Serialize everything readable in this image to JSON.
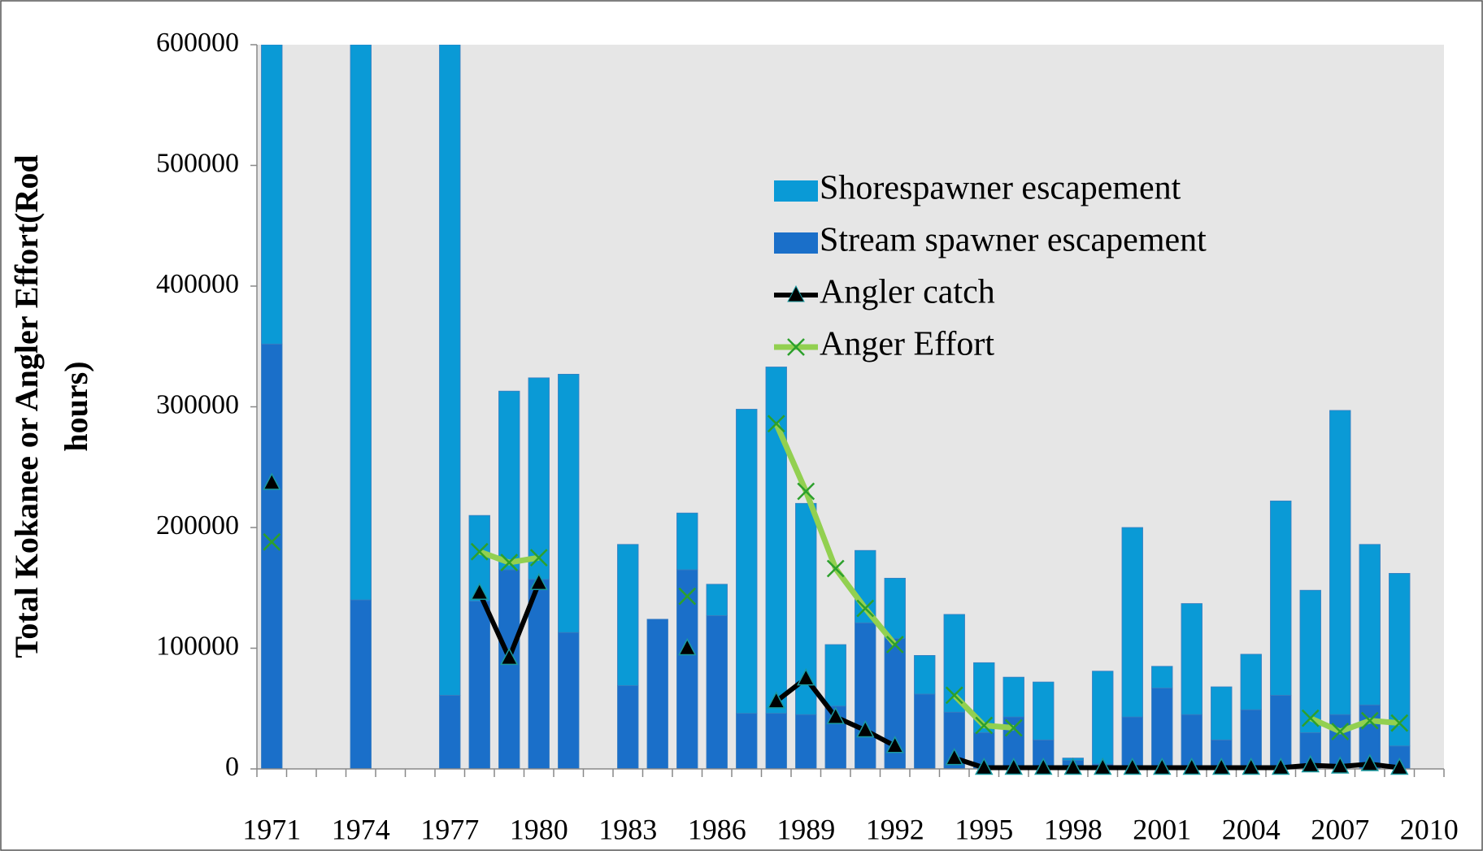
{
  "chart_data": {
    "type": "bar",
    "ylabel": [
      "Total Kokanee or Angler Effort(Rod",
      "hours)"
    ],
    "categories": [
      "1971",
      null,
      null,
      "1974",
      null,
      null,
      "1977",
      null,
      null,
      "1980",
      null,
      null,
      "1983",
      null,
      null,
      "1986",
      null,
      null,
      "1989",
      null,
      null,
      "1992",
      null,
      null,
      "1995",
      null,
      null,
      "1998",
      null,
      null,
      "2001",
      null,
      null,
      "2004",
      null,
      null,
      "2007",
      null,
      null,
      "2010"
    ],
    "series": [
      {
        "name": "Stream spawner escapement",
        "kind": "bar",
        "color": "#1a6fc9",
        "values": [
          352000,
          null,
          null,
          140000,
          null,
          null,
          61000,
          139000,
          165000,
          157000,
          113000,
          null,
          69000,
          124000,
          165000,
          127000,
          46000,
          46000,
          45000,
          52000,
          121000,
          108000,
          62000,
          47000,
          30000,
          43000,
          24000,
          7000,
          4000,
          43000,
          67000,
          45000,
          24000,
          49000,
          61000,
          30000,
          45000,
          53000,
          19000,
          null
        ]
      },
      {
        "name": "Shorespawner escapement",
        "kind": "bar",
        "color": "#0a9ad6",
        "values": [
          248000,
          null,
          null,
          460000,
          null,
          null,
          539000,
          71000,
          148000,
          167000,
          214000,
          null,
          117000,
          0,
          47000,
          26000,
          252000,
          287000,
          175000,
          51000,
          60000,
          50000,
          32000,
          81000,
          58000,
          33000,
          48000,
          2000,
          77000,
          157000,
          18000,
          92000,
          44000,
          46000,
          161000,
          118000,
          252000,
          133000,
          143000,
          null
        ]
      },
      {
        "name": "Angler catch",
        "kind": "line",
        "color": "#000000",
        "marker": "triangle",
        "values": [
          237000,
          null,
          null,
          null,
          null,
          null,
          null,
          146000,
          92000,
          154000,
          null,
          null,
          null,
          null,
          100000,
          null,
          null,
          56000,
          75000,
          43000,
          32000,
          19000,
          null,
          9000,
          1000,
          1000,
          1000,
          1000,
          1000,
          1000,
          1000,
          1000,
          1000,
          1000,
          1000,
          3000,
          2000,
          4000,
          1000,
          null
        ]
      },
      {
        "name": "Anger Effort",
        "kind": "line",
        "color": "#92d050",
        "marker": "x",
        "marker_color": "#2ca02c",
        "values": [
          188000,
          null,
          null,
          null,
          null,
          null,
          null,
          180000,
          171000,
          175000,
          null,
          null,
          null,
          null,
          143000,
          null,
          null,
          286000,
          230000,
          166000,
          133000,
          103000,
          null,
          61000,
          36000,
          34000,
          null,
          null,
          null,
          null,
          null,
          null,
          null,
          null,
          null,
          42000,
          31000,
          40000,
          38000,
          null
        ]
      }
    ],
    "legend_order": [
      1,
      0,
      2,
      3
    ],
    "ylim": [
      0,
      600000
    ],
    "yticks": [
      0,
      100000,
      200000,
      300000,
      400000,
      500000,
      600000
    ]
  }
}
